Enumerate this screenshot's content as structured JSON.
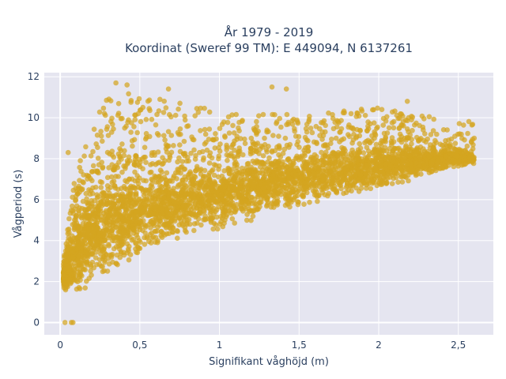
{
  "chart_data": {
    "type": "scatter",
    "title_line1": "År 1979 - 2019",
    "title_line2": "Koordinat (Sweref 99 TM): E 449094, N 6137261",
    "xlabel": "Signifikant våghöjd (m)",
    "ylabel": "Vågperiod (s)",
    "xlim": [
      -0.1,
      2.72
    ],
    "ylim": [
      -0.6,
      12.2
    ],
    "x_ticks": [
      0,
      0.5,
      1,
      1.5,
      2,
      2.5
    ],
    "x_tick_labels": [
      "0",
      "0,5",
      "1",
      "1,5",
      "2",
      "2,5"
    ],
    "y_ticks": [
      0,
      2,
      4,
      6,
      8,
      10,
      12
    ],
    "y_tick_labels": [
      "0",
      "2",
      "4",
      "6",
      "8",
      "10",
      "12"
    ],
    "grid": true,
    "marker_color": "#d4a520",
    "plot_background": "#e5e5f0",
    "distribution": {
      "x_range": [
        0.02,
        2.6
      ],
      "period_lower_envelope": [
        [
          0.02,
          1.5
        ],
        [
          0.1,
          1.3
        ],
        [
          0.2,
          1.7
        ],
        [
          0.3,
          2.4
        ],
        [
          0.5,
          3.3
        ],
        [
          0.75,
          4.0
        ],
        [
          1.0,
          4.5
        ],
        [
          1.5,
          5.6
        ],
        [
          2.0,
          6.5
        ],
        [
          2.5,
          7.6
        ]
      ],
      "period_upper_envelope": [
        [
          0.02,
          3.2
        ],
        [
          0.1,
          7.5
        ],
        [
          0.2,
          9.5
        ],
        [
          0.3,
          11.5
        ],
        [
          0.5,
          11.0
        ],
        [
          0.75,
          10.8
        ],
        [
          1.0,
          10.3
        ],
        [
          1.5,
          10.2
        ],
        [
          2.0,
          10.5
        ],
        [
          2.5,
          9.9
        ]
      ],
      "dense_core_upper": [
        [
          0.02,
          2.8
        ],
        [
          0.1,
          6.0
        ],
        [
          0.2,
          7.3
        ],
        [
          0.5,
          7.6
        ],
        [
          1.0,
          8.0
        ],
        [
          1.5,
          8.5
        ],
        [
          2.0,
          8.8
        ],
        [
          2.5,
          8.6
        ]
      ],
      "outliers": [
        [
          0.03,
          0.0
        ],
        [
          0.07,
          0.0
        ],
        [
          0.08,
          0.0
        ],
        [
          0.05,
          8.3
        ],
        [
          0.35,
          11.7
        ],
        [
          0.42,
          11.6
        ],
        [
          0.68,
          11.4
        ],
        [
          1.33,
          11.5
        ],
        [
          1.42,
          11.4
        ],
        [
          2.02,
          10.4
        ],
        [
          2.18,
          10.8
        ],
        [
          2.6,
          9.0
        ]
      ]
    }
  }
}
